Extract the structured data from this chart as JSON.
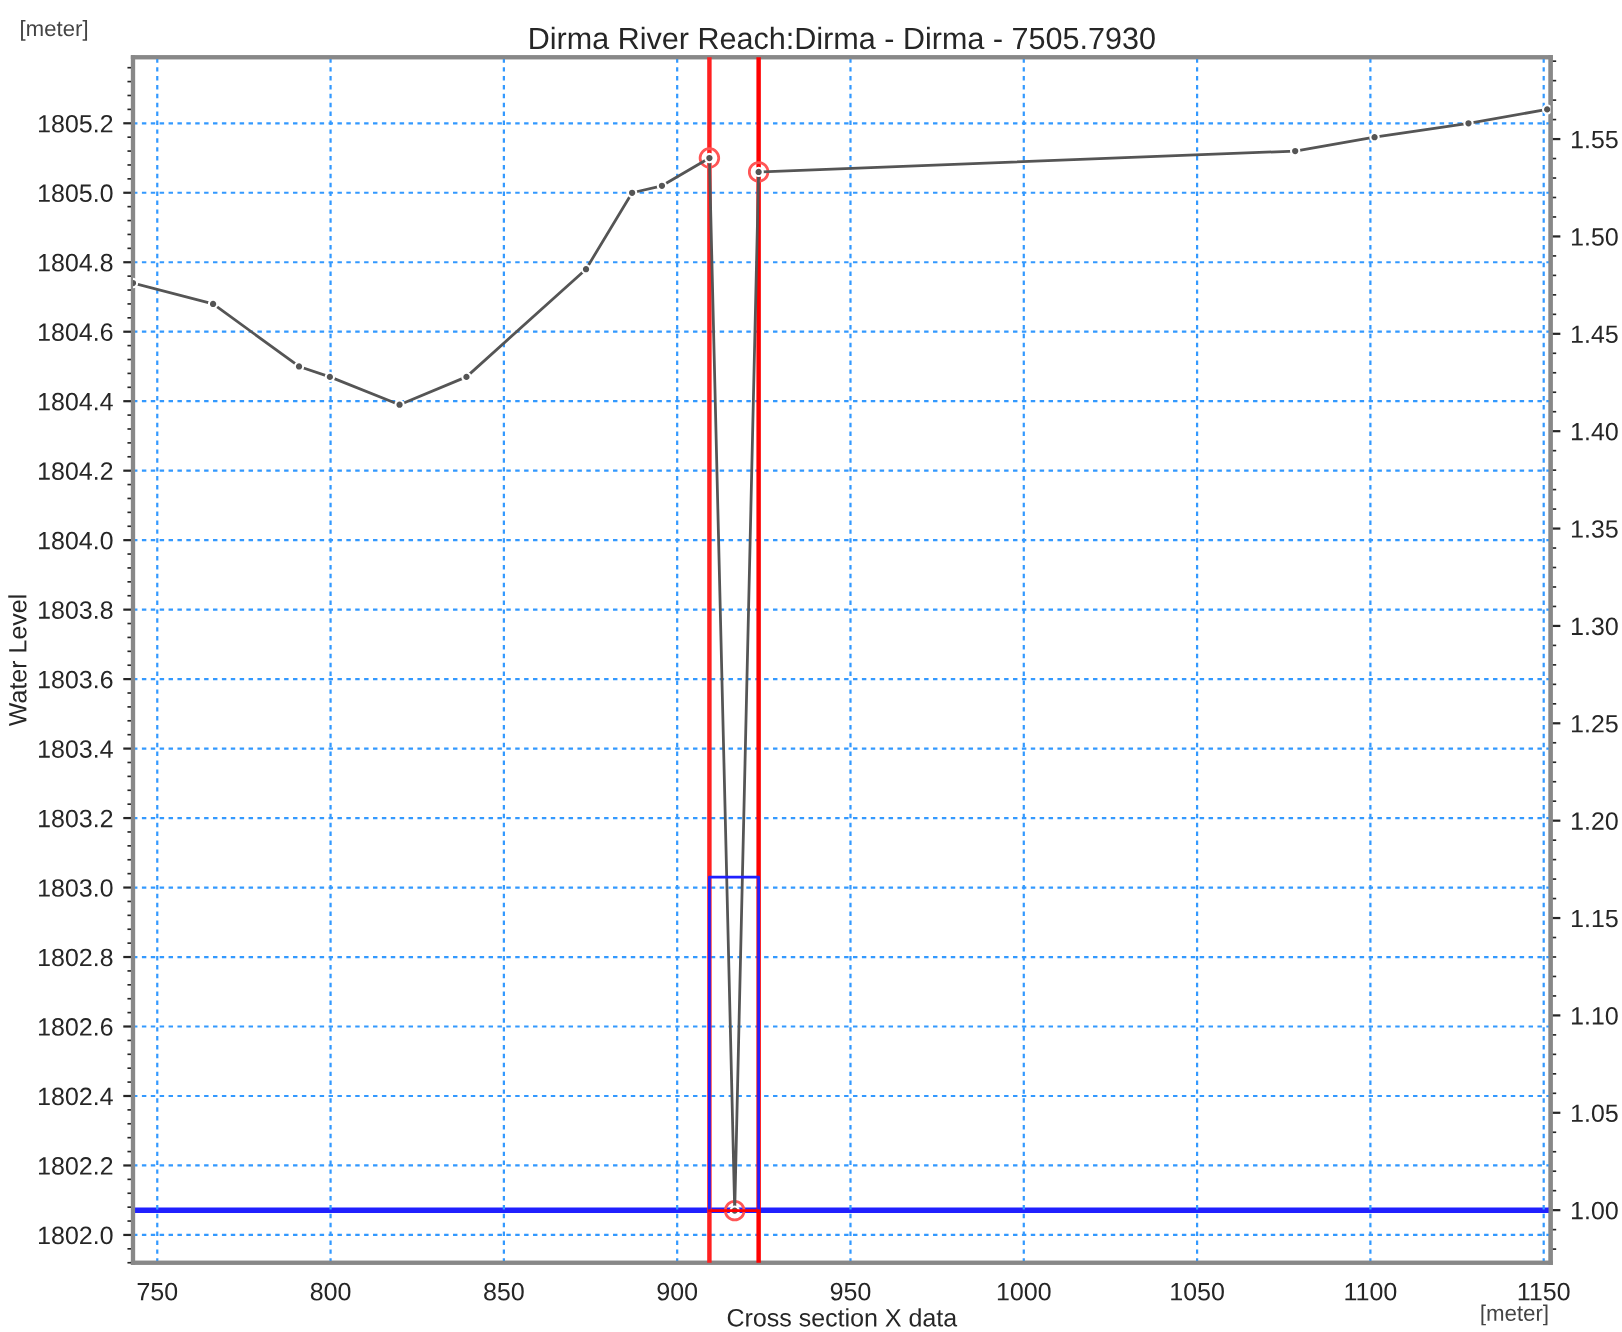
{
  "chart_data": {
    "type": "line",
    "title": "Dirma River Reach:Dirma - Dirma - 7505.7930",
    "xlabel": "Cross section X data",
    "ylabel": "Water Level",
    "annotations": [
      "[meter]",
      "[meter]"
    ],
    "xlim": [
      743,
      1152
    ],
    "xticks": [
      750,
      800,
      850,
      900,
      950,
      1000,
      1050,
      1100,
      1150
    ],
    "ylim": [
      1801.92,
      1805.39
    ],
    "yticks": [
      {
        "value": 1802.0,
        "label": "1802.0"
      },
      1802.2,
      1802.4,
      1802.6,
      1802.8,
      {
        "value": 1803.0,
        "label": "1803.0"
      },
      1803.2,
      1803.4,
      1803.6,
      1803.8,
      {
        "value": 1804.0,
        "label": "1804.0"
      },
      1804.2,
      1804.4,
      1804.6,
      1804.8,
      {
        "value": 1805.0,
        "label": "1805.0"
      },
      1805.2
    ],
    "y2lim": [
      0.973,
      1.592
    ],
    "y2ticks": [
      {
        "value": 1.0,
        "label": "1.00"
      },
      1.05,
      {
        "value": 1.1,
        "label": "1.10"
      },
      1.15,
      {
        "value": 1.2,
        "label": "1.20"
      },
      1.25,
      {
        "value": 1.3,
        "label": "1.30"
      },
      1.35,
      {
        "value": 1.4,
        "label": "1.40"
      },
      1.45,
      {
        "value": 1.5,
        "label": "1.50"
      },
      1.55
    ],
    "grid": true,
    "legend": false,
    "series": [
      {
        "color": "#555555",
        "marker": "circle",
        "x": [
          743,
          766.1,
          790.9,
          799.8,
          819.9,
          839.2,
          873.7,
          887.0,
          895.6,
          909.3,
          916.6,
          923.5,
          1078.3,
          1101.2,
          1128.3,
          1151
        ],
        "values": [
          1804.74,
          1804.68,
          1804.5,
          1804.47,
          1804.39,
          1804.47,
          1804.78,
          1805.0,
          1805.02,
          1805.1,
          1802.07,
          1805.06,
          1805.12,
          1805.16,
          1805.2,
          1805.24
        ]
      },
      {
        "type": "scatter",
        "color": "#ff5555",
        "marker": "circle",
        "x": [
          909.3,
          916.6,
          923.5
        ],
        "values": [
          1805.1,
          1802.07,
          1805.06
        ]
      },
      {
        "color": "#2020ff",
        "marker": "none",
        "x": [
          909.3,
          909.3,
          923.5,
          923.5
        ],
        "values": [
          1802.07,
          1803.03,
          1803.03,
          1802.07
        ]
      },
      {
        "color": "#ff0000",
        "marker": "none",
        "x": [
          909.3,
          923.5
        ],
        "values": [
          1802.07,
          1802.07
        ]
      }
    ],
    "ref_lines": [
      {
        "axis": "x",
        "value": 909.3,
        "color": "#ff2020"
      },
      {
        "axis": "x",
        "value": 923.5,
        "color": "#ff0000"
      },
      {
        "axis": "y2",
        "value": 1.0,
        "color": "#2020ff"
      }
    ]
  }
}
